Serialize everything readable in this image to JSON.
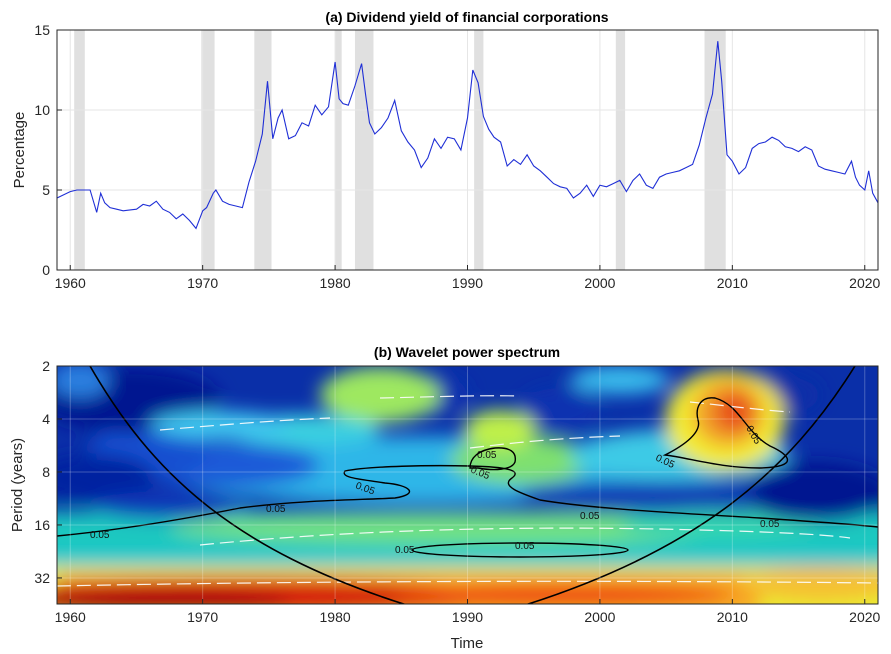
{
  "chart_data": [
    {
      "type": "line",
      "title": "(a) Dividend yield of financial corporations",
      "xlabel": "",
      "ylabel": "Percentage",
      "xlim": [
        1959,
        2021
      ],
      "ylim": [
        0,
        15
      ],
      "xticks": [
        1960,
        1970,
        1980,
        1990,
        2000,
        2010,
        2020
      ],
      "yticks": [
        0,
        5,
        10,
        15
      ],
      "grid": true,
      "line_color": "#1f2fd6",
      "shade_color": "#e0e0e0",
      "recessions": [
        [
          1960.3,
          1961.1
        ],
        [
          1969.9,
          1970.9
        ],
        [
          1973.9,
          1975.2
        ],
        [
          1980.0,
          1980.5
        ],
        [
          1981.5,
          1982.9
        ],
        [
          1990.5,
          1991.2
        ],
        [
          2001.2,
          2001.9
        ],
        [
          2007.9,
          2009.5
        ]
      ],
      "series": [
        {
          "x": [
            1959.0,
            1960.0,
            1960.5,
            1961.0,
            1961.5,
            1962.0,
            1962.3,
            1962.6,
            1963.0,
            1963.5,
            1964.0,
            1965.0,
            1965.5,
            1966.0,
            1966.5,
            1967.0,
            1967.5,
            1968.0,
            1968.5,
            1969.0,
            1969.5,
            1970.0,
            1970.3,
            1970.8,
            1971.0,
            1971.5,
            1972.0,
            1972.5,
            1973.0,
            1973.5,
            1974.0,
            1974.5,
            1974.9,
            1975.3,
            1975.7,
            1976.0,
            1976.5,
            1977.0,
            1977.5,
            1978.0,
            1978.5,
            1979.0,
            1979.5,
            1980.0,
            1980.3,
            1980.6,
            1981.0,
            1981.5,
            1982.0,
            1982.3,
            1982.6,
            1983.0,
            1983.5,
            1984.0,
            1984.5,
            1985.0,
            1985.5,
            1986.0,
            1986.5,
            1987.0,
            1987.5,
            1988.0,
            1988.5,
            1989.0,
            1989.5,
            1990.0,
            1990.4,
            1990.8,
            1991.2,
            1991.6,
            1992.0,
            1992.5,
            1993.0,
            1993.5,
            1994.0,
            1994.5,
            1995.0,
            1995.5,
            1996.0,
            1996.5,
            1997.0,
            1997.5,
            1998.0,
            1998.5,
            1999.0,
            1999.5,
            2000.0,
            2000.5,
            2001.0,
            2001.5,
            2002.0,
            2002.5,
            2003.0,
            2003.5,
            2004.0,
            2004.5,
            2005.0,
            2005.5,
            2006.0,
            2006.5,
            2007.0,
            2007.5,
            2008.0,
            2008.5,
            2008.9,
            2009.2,
            2009.6,
            2010.0,
            2010.5,
            2011.0,
            2011.5,
            2012.0,
            2012.5,
            2013.0,
            2013.5,
            2014.0,
            2014.5,
            2015.0,
            2015.5,
            2016.0,
            2016.5,
            2017.0,
            2017.5,
            2018.0,
            2018.5,
            2019.0,
            2019.3,
            2019.6,
            2020.0,
            2020.3,
            2020.6,
            2021.0
          ],
          "y": [
            4.5,
            4.9,
            5.0,
            5.0,
            5.0,
            3.6,
            4.8,
            4.2,
            3.9,
            3.8,
            3.7,
            3.8,
            4.1,
            4.0,
            4.3,
            3.8,
            3.6,
            3.2,
            3.5,
            3.1,
            2.6,
            3.7,
            3.9,
            4.8,
            5.0,
            4.3,
            4.1,
            4.0,
            3.9,
            5.5,
            6.8,
            8.5,
            11.8,
            8.2,
            9.5,
            10.0,
            8.2,
            8.4,
            9.2,
            9.0,
            10.3,
            9.7,
            10.2,
            13.0,
            10.7,
            10.4,
            10.3,
            11.5,
            12.9,
            11.0,
            9.2,
            8.5,
            8.9,
            9.5,
            10.6,
            8.7,
            8.0,
            7.5,
            6.4,
            7.0,
            8.2,
            7.6,
            8.3,
            8.2,
            7.5,
            9.5,
            12.5,
            11.7,
            9.6,
            8.8,
            8.3,
            8.0,
            6.5,
            6.9,
            6.6,
            7.2,
            6.5,
            6.2,
            5.8,
            5.4,
            5.2,
            5.1,
            4.5,
            4.8,
            5.3,
            4.6,
            5.3,
            5.2,
            5.4,
            5.6,
            4.9,
            5.6,
            6.0,
            5.3,
            5.1,
            5.8,
            6.0,
            6.1,
            6.2,
            6.4,
            6.6,
            7.8,
            9.5,
            11.0,
            14.3,
            11.8,
            7.2,
            6.8,
            6.0,
            6.4,
            7.6,
            7.9,
            8.0,
            8.3,
            8.1,
            7.7,
            7.6,
            7.4,
            7.7,
            7.5,
            6.5,
            6.3,
            6.2,
            6.1,
            6.0,
            6.8,
            5.8,
            5.3,
            5.0,
            6.2,
            4.8,
            4.2
          ]
        }
      ]
    },
    {
      "type": "heatmap",
      "title": "(b) Wavelet power spectrum",
      "xlabel": "Time",
      "ylabel": "Period (years)",
      "xlim": [
        1959,
        2021
      ],
      "ylim": [
        2,
        45
      ],
      "yscale": "log2",
      "y_reversed": true,
      "xticks": [
        1960,
        1970,
        1980,
        1990,
        2000,
        2010,
        2020
      ],
      "yticks": [
        2,
        4,
        8,
        16,
        32
      ],
      "colormap": "jet",
      "contour_label": "0.05",
      "cone_of_influence": "black curve",
      "ridge_lines": "white dashed"
    }
  ]
}
